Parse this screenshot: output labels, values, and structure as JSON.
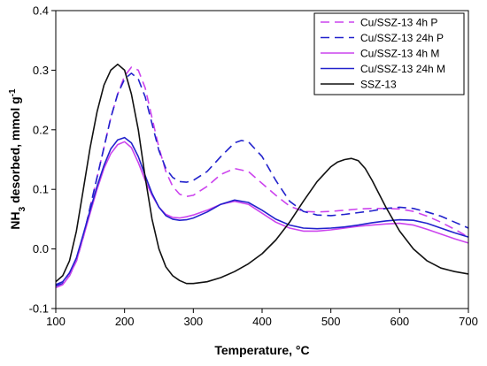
{
  "chart_data": {
    "type": "line",
    "xlabel": "Temperature, °C",
    "ylabel": {
      "main": "NH",
      "sub": "3",
      "rest": " desorbed, mmol g",
      "sup": "-1"
    },
    "xlim": [
      100,
      700
    ],
    "ylim": [
      -0.1,
      0.4
    ],
    "xticks": [
      "100",
      "200",
      "300",
      "400",
      "500",
      "600",
      "700"
    ],
    "yticks": [
      "-0.1",
      "0.0",
      "0.1",
      "0.2",
      "0.3",
      "0.4"
    ],
    "xtick_values": [
      100,
      200,
      300,
      400,
      500,
      600,
      700
    ],
    "ytick_values": [
      -0.1,
      0.0,
      0.1,
      0.2,
      0.3,
      0.4
    ],
    "grid": false,
    "legend_position": "top-right",
    "series": [
      {
        "name": "Cu/SSZ-13 4h P",
        "color": "#cc44ee",
        "dash": "dashed",
        "x": [
          100,
          110,
          120,
          130,
          140,
          150,
          160,
          170,
          180,
          190,
          200,
          210,
          220,
          230,
          240,
          250,
          260,
          270,
          280,
          290,
          300,
          320,
          340,
          360,
          380,
          400,
          420,
          440,
          460,
          480,
          500,
          520,
          540,
          560,
          580,
          600,
          620,
          640,
          660,
          680,
          700
        ],
        "y": [
          -0.06,
          -0.055,
          -0.04,
          -0.02,
          0.02,
          0.07,
          0.12,
          0.17,
          0.22,
          0.26,
          0.29,
          0.305,
          0.3,
          0.27,
          0.22,
          0.17,
          0.13,
          0.105,
          0.092,
          0.088,
          0.09,
          0.105,
          0.125,
          0.135,
          0.13,
          0.11,
          0.09,
          0.072,
          0.063,
          0.062,
          0.063,
          0.065,
          0.067,
          0.068,
          0.068,
          0.067,
          0.063,
          0.055,
          0.045,
          0.033,
          0.02
        ]
      },
      {
        "name": "Cu/SSZ-13 24h P",
        "color": "#2222cc",
        "dash": "dashed",
        "x": [
          100,
          110,
          120,
          130,
          140,
          150,
          160,
          170,
          180,
          190,
          200,
          210,
          220,
          230,
          240,
          250,
          260,
          270,
          280,
          290,
          300,
          320,
          340,
          360,
          370,
          380,
          400,
          420,
          440,
          460,
          480,
          500,
          520,
          540,
          560,
          580,
          600,
          620,
          640,
          660,
          680,
          700
        ],
        "y": [
          -0.062,
          -0.058,
          -0.045,
          -0.02,
          0.02,
          0.07,
          0.12,
          0.17,
          0.22,
          0.26,
          0.285,
          0.295,
          0.285,
          0.255,
          0.21,
          0.165,
          0.135,
          0.12,
          0.113,
          0.112,
          0.115,
          0.13,
          0.155,
          0.178,
          0.182,
          0.18,
          0.155,
          0.115,
          0.08,
          0.063,
          0.057,
          0.056,
          0.058,
          0.061,
          0.064,
          0.068,
          0.07,
          0.068,
          0.062,
          0.055,
          0.045,
          0.035
        ]
      },
      {
        "name": "Cu/SSZ-13 4h M",
        "color": "#cc44ee",
        "dash": "solid",
        "x": [
          100,
          110,
          120,
          130,
          140,
          150,
          160,
          170,
          180,
          190,
          200,
          210,
          220,
          230,
          240,
          250,
          260,
          270,
          280,
          290,
          300,
          320,
          340,
          360,
          380,
          400,
          420,
          440,
          460,
          480,
          500,
          520,
          540,
          560,
          580,
          600,
          620,
          640,
          660,
          680,
          700
        ],
        "y": [
          -0.065,
          -0.06,
          -0.045,
          -0.02,
          0.02,
          0.06,
          0.1,
          0.135,
          0.16,
          0.175,
          0.18,
          0.17,
          0.145,
          0.115,
          0.09,
          0.07,
          0.058,
          0.053,
          0.052,
          0.054,
          0.057,
          0.065,
          0.075,
          0.08,
          0.075,
          0.06,
          0.045,
          0.035,
          0.03,
          0.03,
          0.032,
          0.035,
          0.038,
          0.04,
          0.042,
          0.043,
          0.04,
          0.033,
          0.025,
          0.017,
          0.01
        ]
      },
      {
        "name": "Cu/SSZ-13 24h M",
        "color": "#2222cc",
        "dash": "solid",
        "x": [
          100,
          110,
          120,
          130,
          140,
          150,
          160,
          170,
          180,
          190,
          200,
          210,
          220,
          230,
          240,
          250,
          260,
          270,
          280,
          290,
          300,
          320,
          340,
          360,
          380,
          400,
          420,
          440,
          460,
          480,
          500,
          520,
          540,
          560,
          580,
          600,
          620,
          640,
          660,
          680,
          700
        ],
        "y": [
          -0.06,
          -0.055,
          -0.04,
          -0.015,
          0.025,
          0.065,
          0.105,
          0.14,
          0.168,
          0.183,
          0.187,
          0.178,
          0.155,
          0.123,
          0.093,
          0.07,
          0.056,
          0.05,
          0.048,
          0.049,
          0.052,
          0.062,
          0.075,
          0.082,
          0.078,
          0.065,
          0.05,
          0.04,
          0.035,
          0.034,
          0.035,
          0.037,
          0.04,
          0.044,
          0.047,
          0.049,
          0.048,
          0.043,
          0.035,
          0.027,
          0.02
        ]
      },
      {
        "name": "SSZ-13",
        "color": "#111111",
        "dash": "solid",
        "x": [
          100,
          110,
          120,
          130,
          140,
          150,
          160,
          170,
          180,
          190,
          200,
          210,
          220,
          230,
          240,
          250,
          260,
          270,
          280,
          290,
          300,
          320,
          340,
          360,
          380,
          400,
          420,
          440,
          460,
          480,
          500,
          510,
          520,
          530,
          540,
          550,
          560,
          580,
          600,
          620,
          640,
          660,
          680,
          700
        ],
        "y": [
          -0.055,
          -0.045,
          -0.02,
          0.03,
          0.1,
          0.17,
          0.23,
          0.275,
          0.3,
          0.31,
          0.3,
          0.26,
          0.2,
          0.12,
          0.05,
          0.0,
          -0.03,
          -0.045,
          -0.053,
          -0.058,
          -0.058,
          -0.055,
          -0.048,
          -0.038,
          -0.025,
          -0.008,
          0.015,
          0.045,
          0.08,
          0.113,
          0.138,
          0.146,
          0.15,
          0.152,
          0.148,
          0.135,
          0.115,
          0.07,
          0.03,
          0.0,
          -0.02,
          -0.032,
          -0.038,
          -0.042
        ]
      }
    ]
  }
}
